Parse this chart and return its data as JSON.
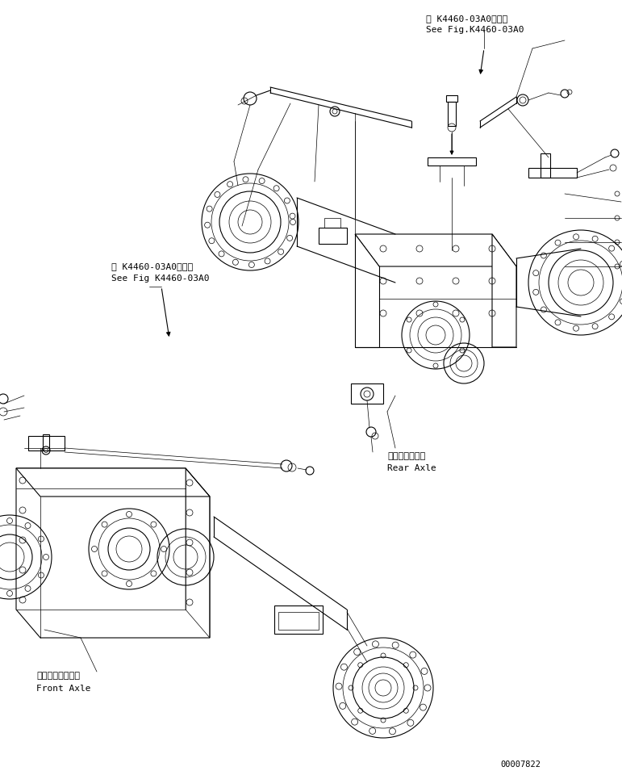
{
  "bg_color": "#ffffff",
  "line_color": "#000000",
  "fig_width": 7.71,
  "fig_height": 9.55,
  "dpi": 100,
  "title_jp": "第 K4460-03A0図参照",
  "title_en": "See Fig.K4460-03A0",
  "title_jp2": "第 K4460-03A0図参照",
  "title_en2": "See Fig K4460-03A0",
  "rear_axle_jp": "リヤーアクスル",
  "rear_axle_en": "Rear Axle",
  "front_axle_jp": "フロントアクスル",
  "front_axle_en": "Front Axle",
  "part_number": "00007822",
  "text_color": "#000000",
  "lw_thin": 0.5,
  "lw_med": 0.8,
  "lw_thick": 1.2
}
